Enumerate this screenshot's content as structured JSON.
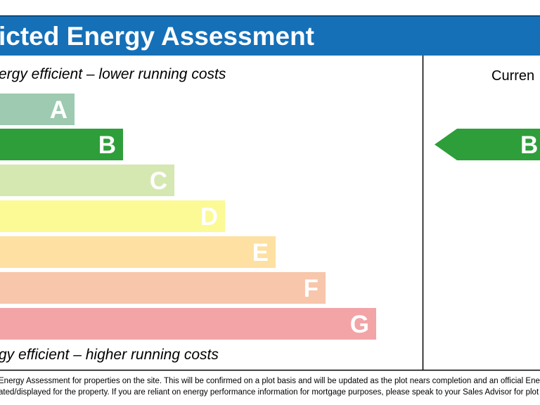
{
  "header": {
    "title": "icted Energy Assessment"
  },
  "scale": {
    "top_note": "ergy efficient – lower running costs",
    "bottom_note": "gy efficient – higher running costs",
    "bands": [
      {
        "letter": "A",
        "color": "#9dcab0"
      },
      {
        "letter": "B",
        "color": "#2e9e3a"
      },
      {
        "letter": "C",
        "color": "#d5e8b1"
      },
      {
        "letter": "D",
        "color": "#fbfa95"
      },
      {
        "letter": "E",
        "color": "#fde0a2"
      },
      {
        "letter": "F",
        "color": "#f7c6ab"
      },
      {
        "letter": "G",
        "color": "#f2a4a7"
      }
    ]
  },
  "current": {
    "heading": "Curren",
    "rating": "B",
    "color": "#2e9e3a"
  },
  "footer": {
    "lines": [
      "Energy Assessment for properties on the site. This will be confirmed on a plot basis and will be updated as the plot nears completion and an official Energ",
      "ated/displayed for the property. If you are reliant on energy performance information for mortgage purposes, please speak to your Sales Advisor for plot s"
    ]
  }
}
